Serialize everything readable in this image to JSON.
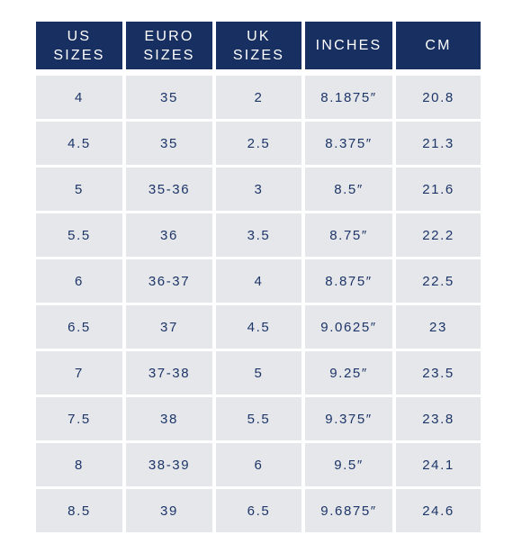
{
  "headers": [
    "US\nSIZES",
    "EURO\nSIZES",
    "UK\nSIZES",
    "INCHES",
    "CM"
  ],
  "rows": [
    [
      "4",
      "35",
      "2",
      "8.1875″",
      "20.8"
    ],
    [
      "4.5",
      "35",
      "2.5",
      "8.375″",
      "21.3"
    ],
    [
      "5",
      "35-36",
      "3",
      "8.5″",
      "21.6"
    ],
    [
      "5.5",
      "36",
      "3.5",
      "8.75″",
      "22.2"
    ],
    [
      "6",
      "36-37",
      "4",
      "8.875″",
      "22.5"
    ],
    [
      "6.5",
      "37",
      "4.5",
      "9.0625″",
      "23"
    ],
    [
      "7",
      "37-38",
      "5",
      "9.25″",
      "23.5"
    ],
    [
      "7.5",
      "38",
      "5.5",
      "9.375″",
      "23.8"
    ],
    [
      "8",
      "38-39",
      "6",
      "9.5″",
      "24.1"
    ],
    [
      "8.5",
      "39",
      "6.5",
      "9.6875″",
      "24.6"
    ]
  ]
}
